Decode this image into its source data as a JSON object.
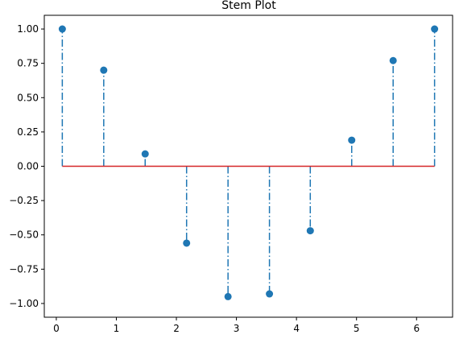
{
  "chart_data": {
    "type": "stem",
    "title": "Stem Plot",
    "xlabel": "",
    "ylabel": "",
    "xlim": [
      -0.2,
      6.6
    ],
    "ylim": [
      -1.1,
      1.1
    ],
    "x_ticks": [
      0,
      1,
      2,
      3,
      4,
      5,
      6
    ],
    "x_tick_labels": [
      "0",
      "1",
      "2",
      "3",
      "4",
      "5",
      "6"
    ],
    "y_ticks": [
      -1.0,
      -0.75,
      -0.5,
      -0.25,
      0.0,
      0.25,
      0.5,
      0.75,
      1.0
    ],
    "y_tick_labels": [
      "−1.00",
      "−0.75",
      "−0.50",
      "−0.25",
      "0.00",
      "0.25",
      "0.50",
      "0.75",
      "1.00"
    ],
    "grid": false,
    "baseline": 0,
    "colors": {
      "stem": "#1f77b4",
      "marker": "#1f77b4",
      "baseline": "#d62728"
    },
    "stem_linestyle": "dash-dot",
    "x": [
      0.1,
      0.79,
      1.48,
      2.17,
      2.86,
      3.55,
      4.23,
      4.92,
      5.61,
      6.3
    ],
    "y": [
      1.0,
      0.7,
      0.09,
      -0.56,
      -0.95,
      -0.93,
      -0.47,
      0.19,
      0.77,
      1.0
    ]
  }
}
